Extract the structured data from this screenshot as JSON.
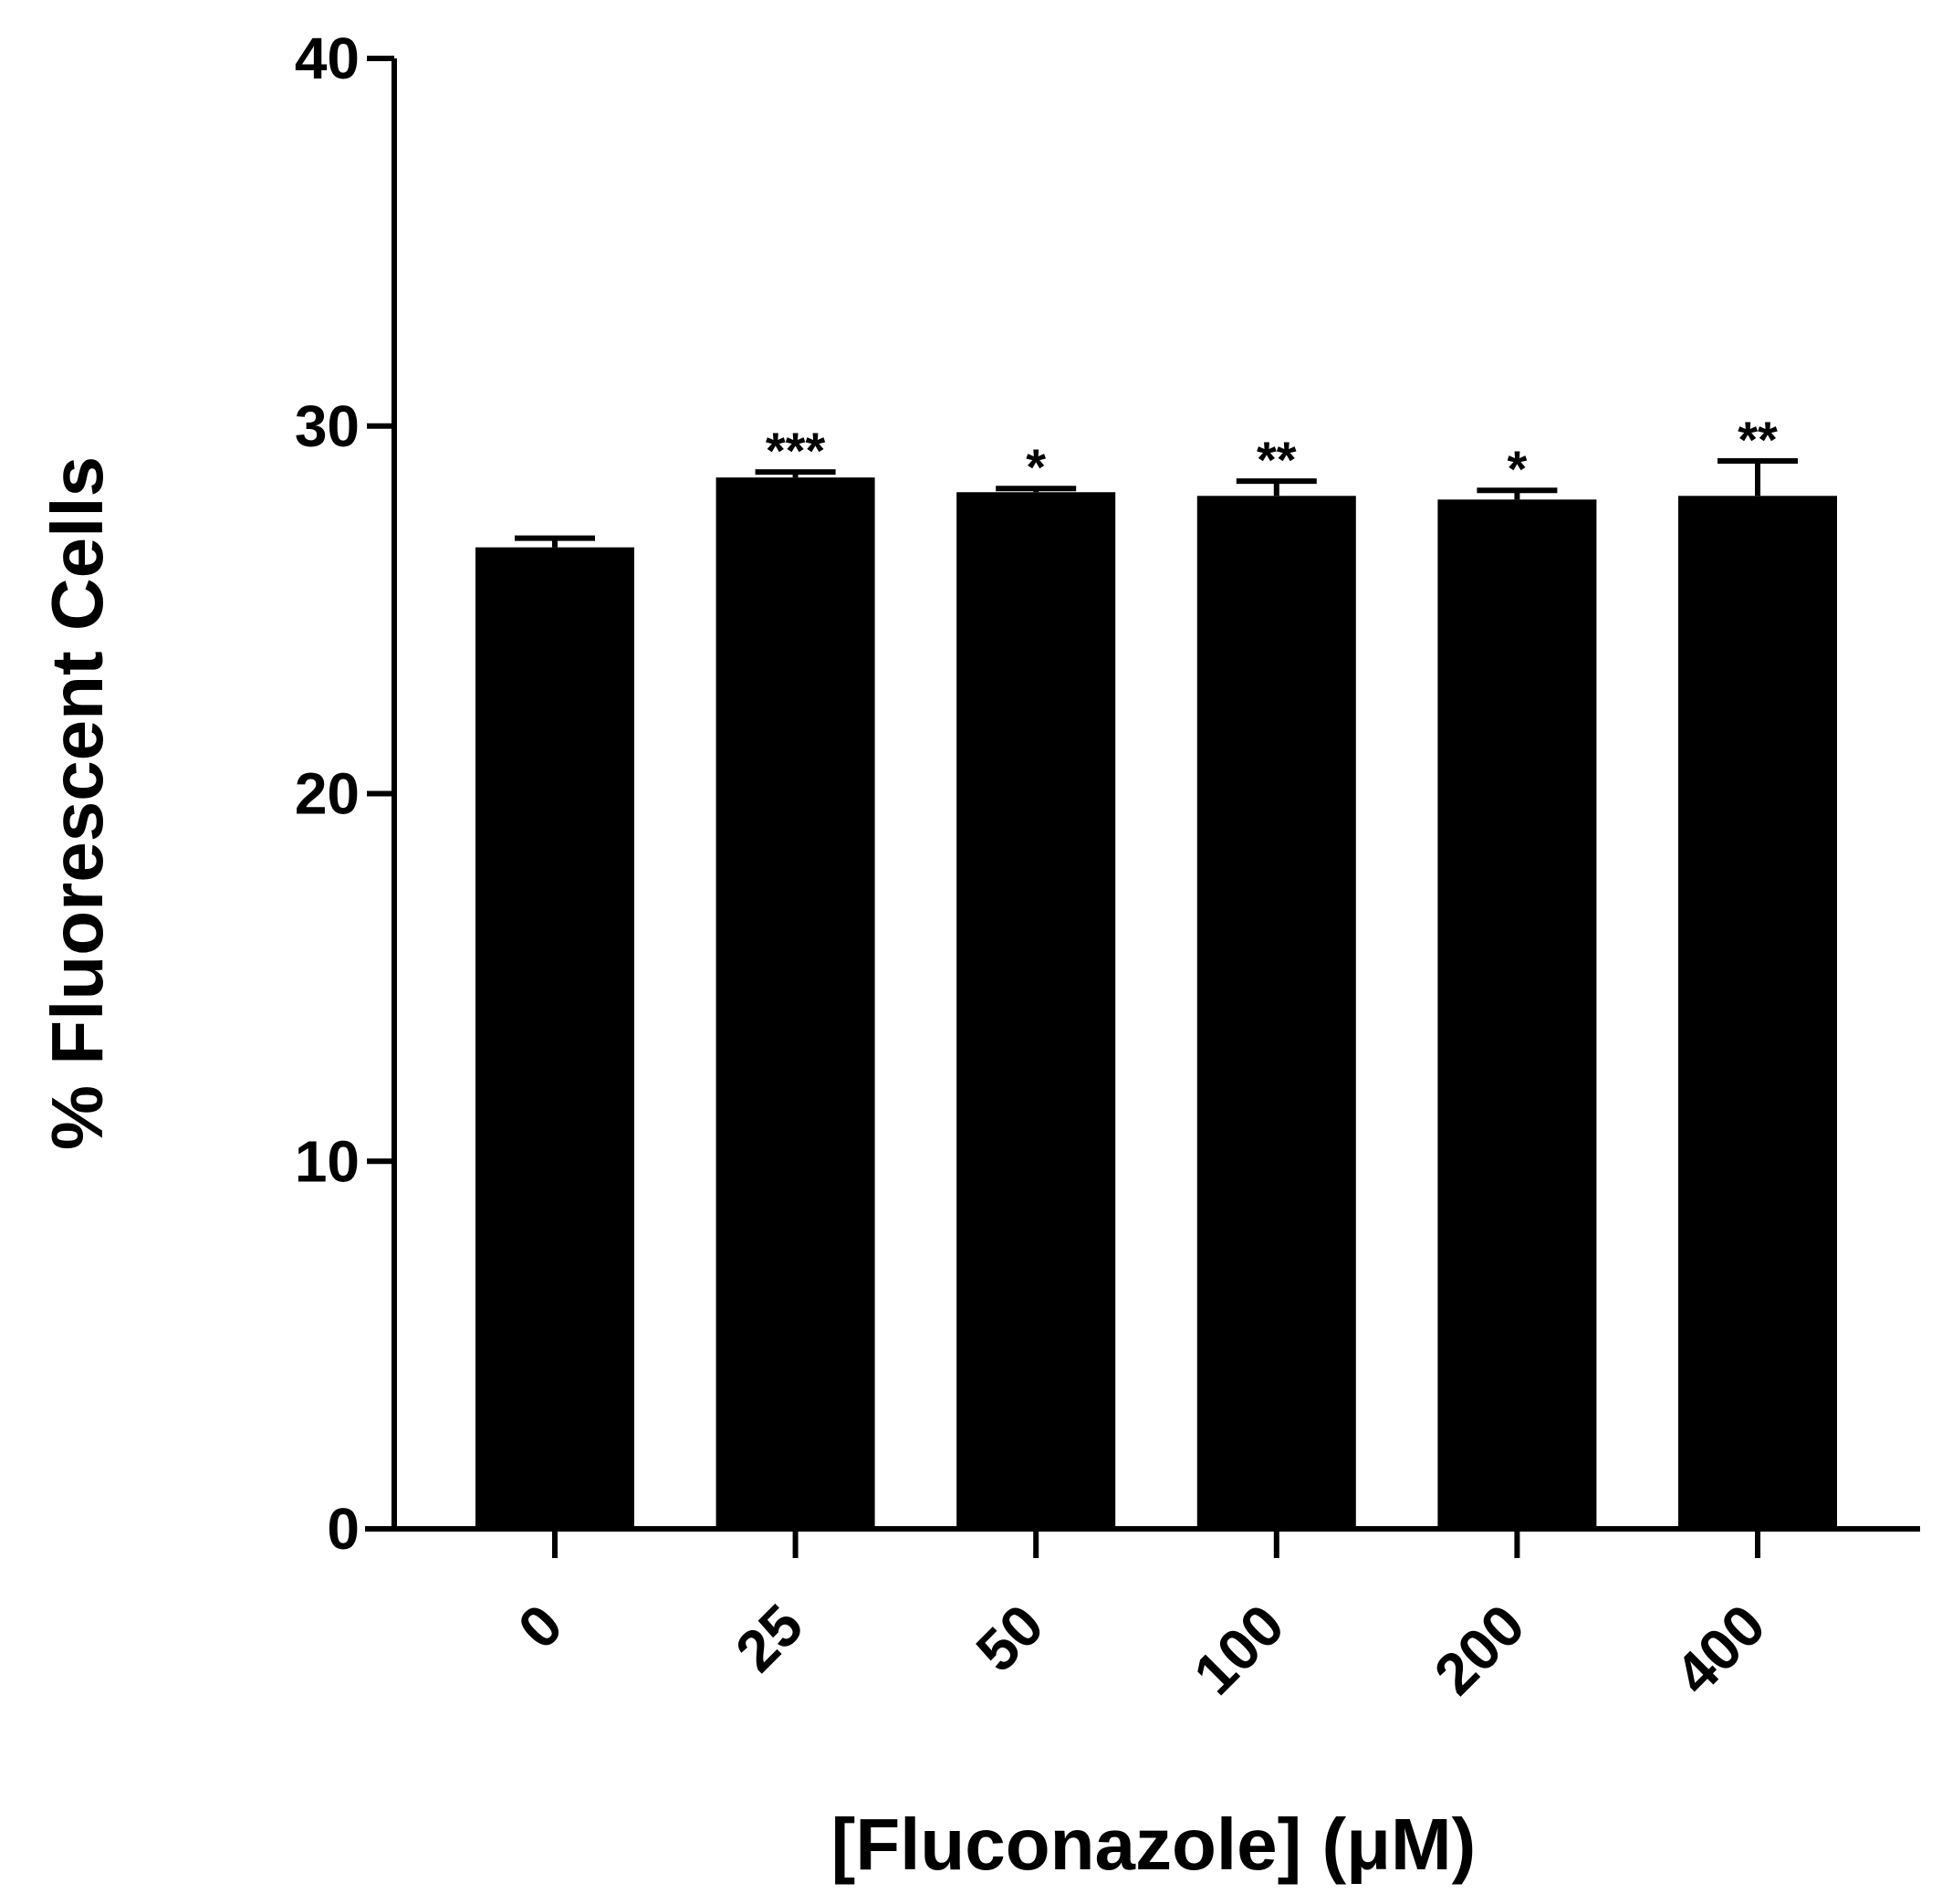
{
  "chart_data": {
    "type": "bar",
    "title": "",
    "xlabel": "[Fluconazole] (μM)",
    "ylabel": "% Fluorescent Cells",
    "categories": [
      "0",
      "25",
      "50",
      "100",
      "200",
      "400"
    ],
    "values": [
      26.7,
      28.6,
      28.2,
      28.1,
      28.0,
      28.1
    ],
    "errors": [
      0.25,
      0.15,
      0.1,
      0.4,
      0.25,
      0.95
    ],
    "significance": [
      "",
      "***",
      "*",
      "**",
      "*",
      "**"
    ],
    "ylim": [
      0,
      40
    ],
    "yticks": [
      "0",
      "10",
      "20",
      "30",
      "40"
    ],
    "bar_color": "#000000",
    "grid": false,
    "legend": "none"
  }
}
